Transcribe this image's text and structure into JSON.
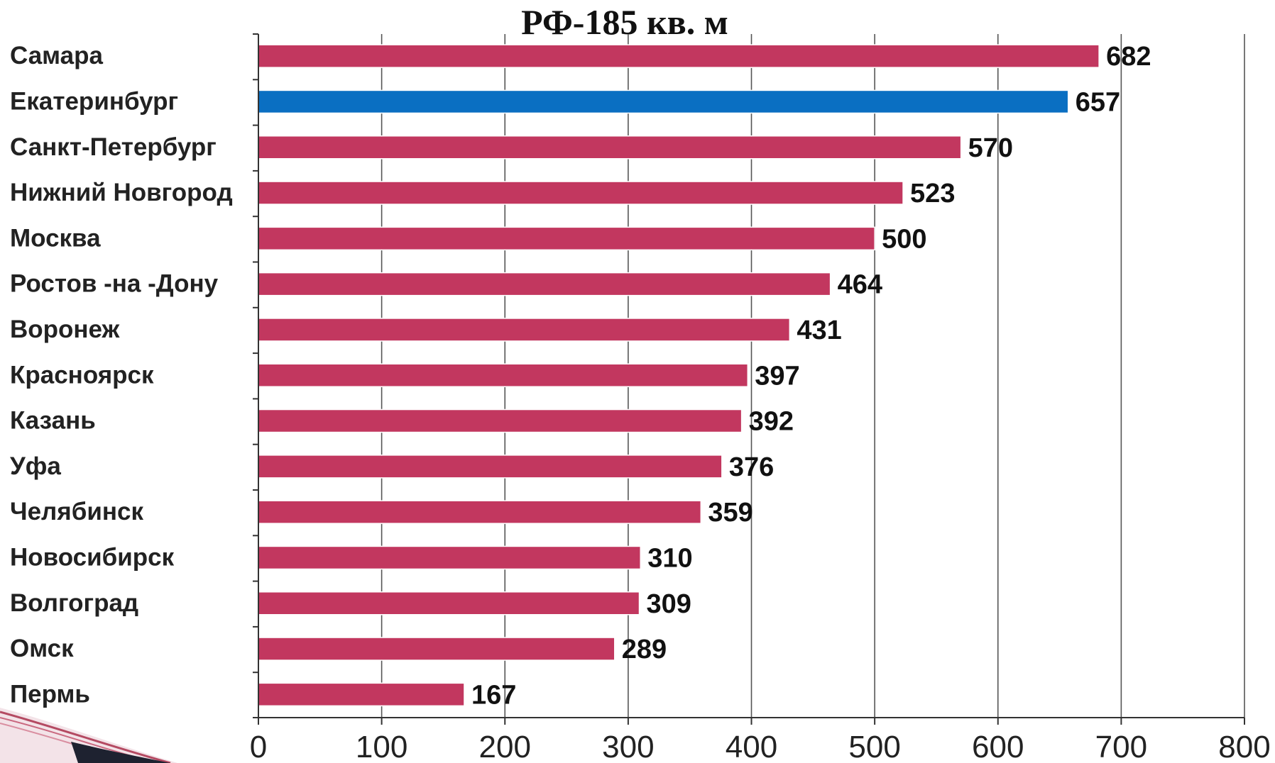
{
  "chart_data": {
    "type": "bar",
    "orientation": "horizontal",
    "title": "РФ-185 кв. м",
    "categories": [
      "Самара",
      "Екатеринбург",
      "Санкт-Петербург",
      "Нижний Новгород",
      "Москва",
      "Ростов -на -Дону",
      "Воронеж",
      "Красноярск",
      "Казань",
      "Уфа",
      "Челябинск",
      "Новосибирск",
      "Волгоград",
      "Омск",
      "Пермь"
    ],
    "values": [
      682,
      657,
      570,
      523,
      500,
      464,
      431,
      397,
      392,
      376,
      359,
      310,
      309,
      289,
      167
    ],
    "value_labels": [
      "682",
      "657",
      "570",
      "523",
      "500",
      "464",
      "431",
      "397",
      "392",
      "376",
      "359",
      "310",
      "309",
      "289",
      "167"
    ],
    "xlim": [
      0,
      800
    ],
    "x_ticks": [
      0,
      100,
      200,
      300,
      400,
      500,
      600,
      700,
      800
    ],
    "x_tick_labels": [
      "0",
      "100",
      "200",
      "300",
      "400",
      "500",
      "600",
      "700",
      "800"
    ],
    "xlabel": "",
    "ylabel": "",
    "grid": "vertical",
    "legend": "none",
    "colors": {
      "default_bar": "#c2375f",
      "highlight_bar": "#0a6fc2",
      "highlight_category": "Екатеринбург"
    }
  }
}
